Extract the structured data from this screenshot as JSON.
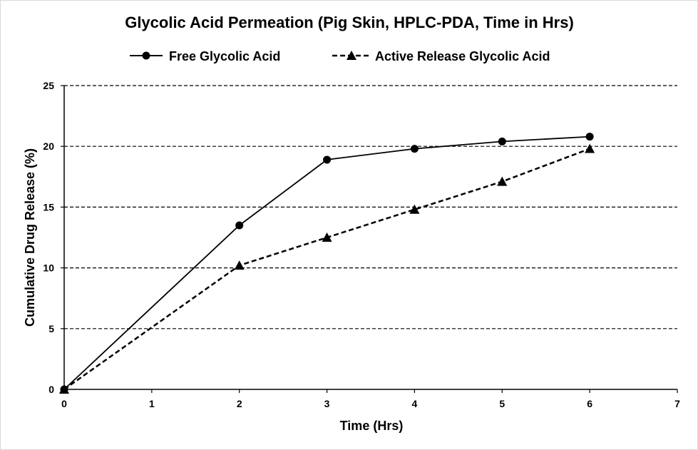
{
  "chart_data": {
    "type": "line",
    "title": "Glycolic Acid Permeation (Pig Skin, HPLC-PDA, Time in Hrs)",
    "xlabel": "Time (Hrs)",
    "ylabel": "Cumulative Drug Release (%)",
    "xlim": [
      0,
      7
    ],
    "ylim": [
      0,
      25
    ],
    "x_ticks": [
      "0",
      "1",
      "2",
      "3",
      "4",
      "5",
      "6",
      "7"
    ],
    "y_ticks": [
      "0",
      "5",
      "10",
      "15",
      "20",
      "25"
    ],
    "grid": "horizontal dashed",
    "legend_position": "top",
    "series": [
      {
        "name": "Free Glycolic Acid",
        "marker": "circle",
        "line_style": "solid",
        "color": "#000000",
        "x": [
          0,
          2,
          3,
          4,
          5,
          6
        ],
        "y": [
          0,
          13.5,
          18.9,
          19.8,
          20.4,
          20.8
        ]
      },
      {
        "name": "Active Release Glycolic Acid",
        "marker": "triangle",
        "line_style": "dashed",
        "color": "#000000",
        "x": [
          0,
          2,
          3,
          4,
          5,
          6
        ],
        "y": [
          0,
          10.2,
          12.5,
          14.8,
          17.1,
          19.8
        ]
      }
    ]
  }
}
